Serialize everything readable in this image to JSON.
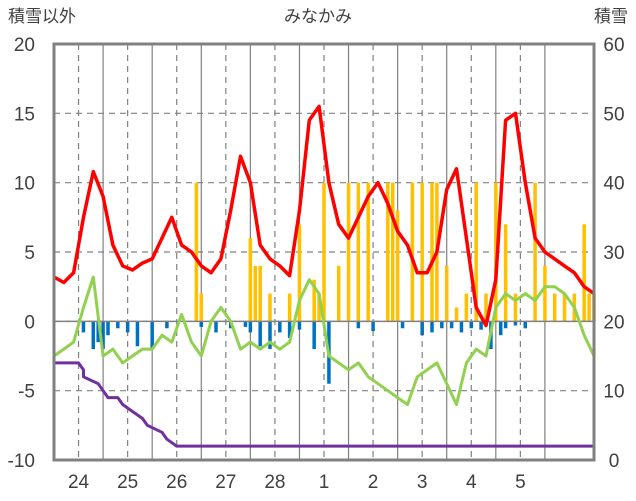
{
  "chart_data": {
    "type": "line",
    "title": "みなかみ",
    "left_axis_label": "積雪以外",
    "right_axis_label": "積雪",
    "left_ylim": [
      -10,
      20
    ],
    "left_ticks": [
      "20",
      "15",
      "10",
      "5",
      "0",
      "-5",
      "-10"
    ],
    "right_ylim": [
      0,
      60
    ],
    "right_ticks": [
      "60",
      "50",
      "40",
      "30",
      "20",
      "10",
      "0"
    ],
    "x_start_day": 23.5,
    "x_end_day": 34.5,
    "categories": [
      "24",
      "25",
      "26",
      "27",
      "28",
      "1",
      "2",
      "3",
      "4",
      "5"
    ],
    "grid": true,
    "legend": "none",
    "colors": {
      "temperature": "#ff0000",
      "dewpoint": "#92d050",
      "snowfall": "#ffc000",
      "snow_decrease": "#0070c0",
      "snow_depth": "#7030a0"
    },
    "series": [
      {
        "key": "temperature",
        "axis": "left",
        "x": [
          0.0,
          0.2,
          0.4,
          0.6,
          0.8,
          1.0,
          1.2,
          1.4,
          1.6,
          1.8,
          2.0,
          2.2,
          2.4,
          2.6,
          2.8,
          3.0,
          3.2,
          3.4,
          3.6,
          3.8,
          4.0,
          4.2,
          4.4,
          4.6,
          4.8,
          5.0,
          5.2,
          5.4,
          5.6,
          5.8,
          6.0,
          6.2,
          6.4,
          6.6,
          6.8,
          7.0,
          7.2,
          7.4,
          7.6,
          7.8,
          8.0,
          8.2,
          8.4,
          8.6,
          8.8,
          9.0,
          9.2,
          9.4,
          9.6,
          9.8,
          10.0,
          10.2,
          10.4,
          10.6,
          10.8,
          11.0
        ],
        "values": [
          3.2,
          2.8,
          3.5,
          7.5,
          10.8,
          9.0,
          5.5,
          4.0,
          3.7,
          4.2,
          4.5,
          6.0,
          7.5,
          5.5,
          5.0,
          4.0,
          3.5,
          4.5,
          8.0,
          11.9,
          10.0,
          5.5,
          4.5,
          4.0,
          3.3,
          8.0,
          14.5,
          15.5,
          10.0,
          7.0,
          6.0,
          7.5,
          9.0,
          10.0,
          8.5,
          6.5,
          5.5,
          3.5,
          3.5,
          5.0,
          9.5,
          11.0,
          6.0,
          1.0,
          -0.3,
          3.0,
          14.5,
          15.0,
          10.0,
          6.0,
          5.0,
          4.5,
          4.0,
          3.5,
          2.5,
          2.0
        ]
      },
      {
        "key": "dewpoint",
        "axis": "left",
        "x": [
          0.0,
          0.2,
          0.4,
          0.6,
          0.8,
          1.0,
          1.2,
          1.4,
          1.6,
          1.8,
          2.0,
          2.2,
          2.4,
          2.6,
          2.8,
          3.0,
          3.2,
          3.4,
          3.6,
          3.8,
          4.0,
          4.2,
          4.4,
          4.6,
          4.8,
          5.0,
          5.2,
          5.4,
          5.6,
          5.8,
          6.0,
          6.2,
          6.4,
          6.6,
          6.8,
          7.0,
          7.2,
          7.4,
          7.6,
          7.8,
          8.0,
          8.2,
          8.4,
          8.6,
          8.8,
          9.0,
          9.2,
          9.4,
          9.6,
          9.8,
          10.0,
          10.2,
          10.4,
          10.6,
          10.8,
          11.0
        ],
        "values": [
          -2.5,
          -2.0,
          -1.5,
          1.0,
          3.2,
          -2.5,
          -2.0,
          -3.0,
          -2.5,
          -2.0,
          -2.0,
          -1.0,
          -1.5,
          0.5,
          -1.5,
          -2.5,
          0.0,
          1.0,
          0.0,
          -2.0,
          -1.5,
          -2.0,
          -1.5,
          -2.0,
          -1.5,
          1.5,
          3.0,
          2.0,
          -2.5,
          -3.0,
          -3.5,
          -3.0,
          -4.0,
          -4.5,
          -5.0,
          -5.5,
          -6.0,
          -4.0,
          -3.5,
          -3.0,
          -4.5,
          -6.0,
          -3.0,
          -2.0,
          -2.5,
          1.0,
          2.0,
          1.5,
          2.0,
          1.5,
          2.5,
          2.5,
          2.0,
          1.0,
          -1.0,
          -2.5
        ]
      },
      {
        "key": "snow_depth",
        "axis": "right",
        "x": [
          0.0,
          0.5,
          0.5,
          0.6,
          0.6,
          0.9,
          1.0,
          1.1,
          1.3,
          1.4,
          1.6,
          1.8,
          1.9,
          2.2,
          2.3,
          2.5,
          11.0
        ],
        "values": [
          14,
          14,
          14,
          13,
          12,
          11,
          10,
          9,
          9,
          8,
          7,
          6,
          5,
          4,
          3,
          2,
          2
        ]
      }
    ],
    "bars": [
      {
        "key": "snowfall",
        "axis": "left",
        "x": [
          2.9,
          3.0,
          4.0,
          4.1,
          4.2,
          4.4,
          4.8,
          5.0,
          5.3,
          5.4,
          5.5,
          5.8,
          6.0,
          6.2,
          6.4,
          6.8,
          6.9,
          7.0,
          7.3,
          7.5,
          7.7,
          7.8,
          8.0,
          8.2,
          8.4,
          8.6,
          8.8,
          9.0,
          9.2,
          9.4,
          9.8,
          10.0,
          10.2,
          10.4,
          10.6,
          10.8,
          10.9,
          11.0
        ],
        "values": [
          10,
          2,
          6,
          4,
          4,
          2,
          2,
          7,
          3,
          2,
          10,
          4,
          10,
          10,
          10,
          10,
          10,
          8,
          10,
          10,
          10,
          10,
          4,
          1,
          2,
          10,
          2,
          10,
          7,
          2,
          10,
          4,
          2,
          2,
          2,
          7,
          2,
          2
        ]
      },
      {
        "key": "snow_decrease",
        "axis": "left",
        "x": [
          0.6,
          0.8,
          0.9,
          1.0,
          1.1,
          1.3,
          1.5,
          1.7,
          2.0,
          2.3,
          3.0,
          3.3,
          3.6,
          3.9,
          4.0,
          4.2,
          4.4,
          4.6,
          4.8,
          5.0,
          5.3,
          5.6,
          6.2,
          6.5,
          7.1,
          7.5,
          7.7,
          7.9,
          8.1,
          8.3,
          8.5,
          8.7,
          8.9,
          9.1,
          9.2,
          9.4,
          9.6
        ],
        "values": [
          -0.8,
          -2.0,
          -1.5,
          -2.0,
          -1.0,
          -0.5,
          -0.8,
          -1.8,
          -2.0,
          -0.5,
          -0.4,
          -0.8,
          -0.5,
          -0.4,
          -0.8,
          -1.8,
          -2.0,
          -0.8,
          -1.2,
          -0.6,
          -2.0,
          -4.5,
          -0.5,
          -0.7,
          -0.5,
          -1.0,
          -0.8,
          -0.5,
          -0.5,
          -0.8,
          -0.5,
          -0.6,
          -2.0,
          -1.0,
          -0.5,
          -0.3,
          -0.5
        ]
      }
    ]
  }
}
